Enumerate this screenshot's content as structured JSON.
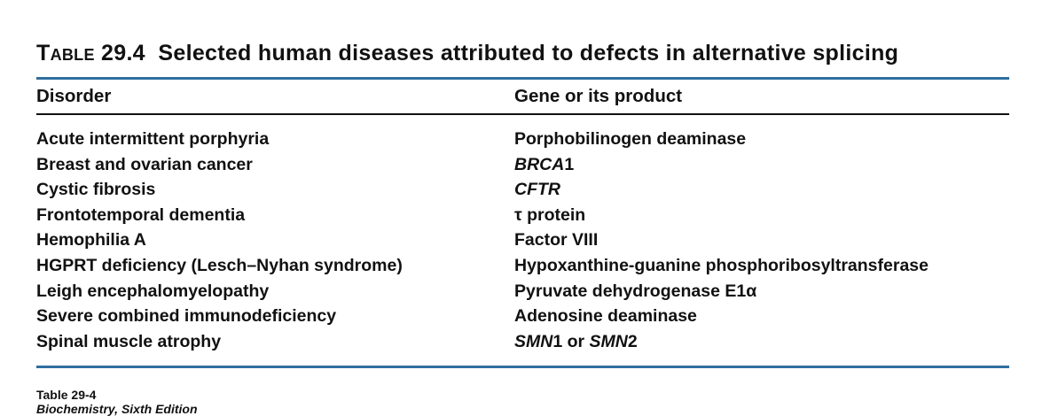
{
  "title": {
    "label": "Table",
    "number": "29.4",
    "text": "Selected human diseases attributed to defects in alternative splicing"
  },
  "columns": [
    "Disorder",
    "Gene or its product"
  ],
  "rows": [
    {
      "disorder": "Acute intermittent porphyria",
      "gene": [
        {
          "text": "Porphobilinogen deaminase",
          "italic": false
        }
      ]
    },
    {
      "disorder": "Breast and ovarian cancer",
      "gene": [
        {
          "text": "BRCA",
          "italic": true
        },
        {
          "text": "1",
          "italic": false
        }
      ]
    },
    {
      "disorder": "Cystic fibrosis",
      "gene": [
        {
          "text": "CFTR",
          "italic": true
        }
      ]
    },
    {
      "disorder": "Frontotemporal dementia",
      "gene": [
        {
          "text": "τ protein",
          "italic": false
        }
      ]
    },
    {
      "disorder": "Hemophilia A",
      "gene": [
        {
          "text": "Factor VIII",
          "italic": false
        }
      ]
    },
    {
      "disorder": "HGPRT deficiency (Lesch–Nyhan syndrome)",
      "gene": [
        {
          "text": "Hypoxanthine-guanine phosphoribosyltransferase",
          "italic": false
        }
      ]
    },
    {
      "disorder": "Leigh encephalomyelopathy",
      "gene": [
        {
          "text": "Pyruvate dehydrogenase E1α",
          "italic": false
        }
      ]
    },
    {
      "disorder": "Severe combined immunodeficiency",
      "gene": [
        {
          "text": "Adenosine deaminase",
          "italic": false
        }
      ]
    },
    {
      "disorder": "Spinal muscle atrophy",
      "gene": [
        {
          "text": "SMN",
          "italic": true
        },
        {
          "text": "1 or ",
          "italic": false
        },
        {
          "text": "SMN",
          "italic": true
        },
        {
          "text": "2",
          "italic": false
        }
      ]
    }
  ],
  "footer": {
    "table_ref": "Table 29-4",
    "source": "Biochemistry, Sixth Edition"
  },
  "colors": {
    "rule_blue": "#2f6fa0",
    "text": "#111111"
  }
}
